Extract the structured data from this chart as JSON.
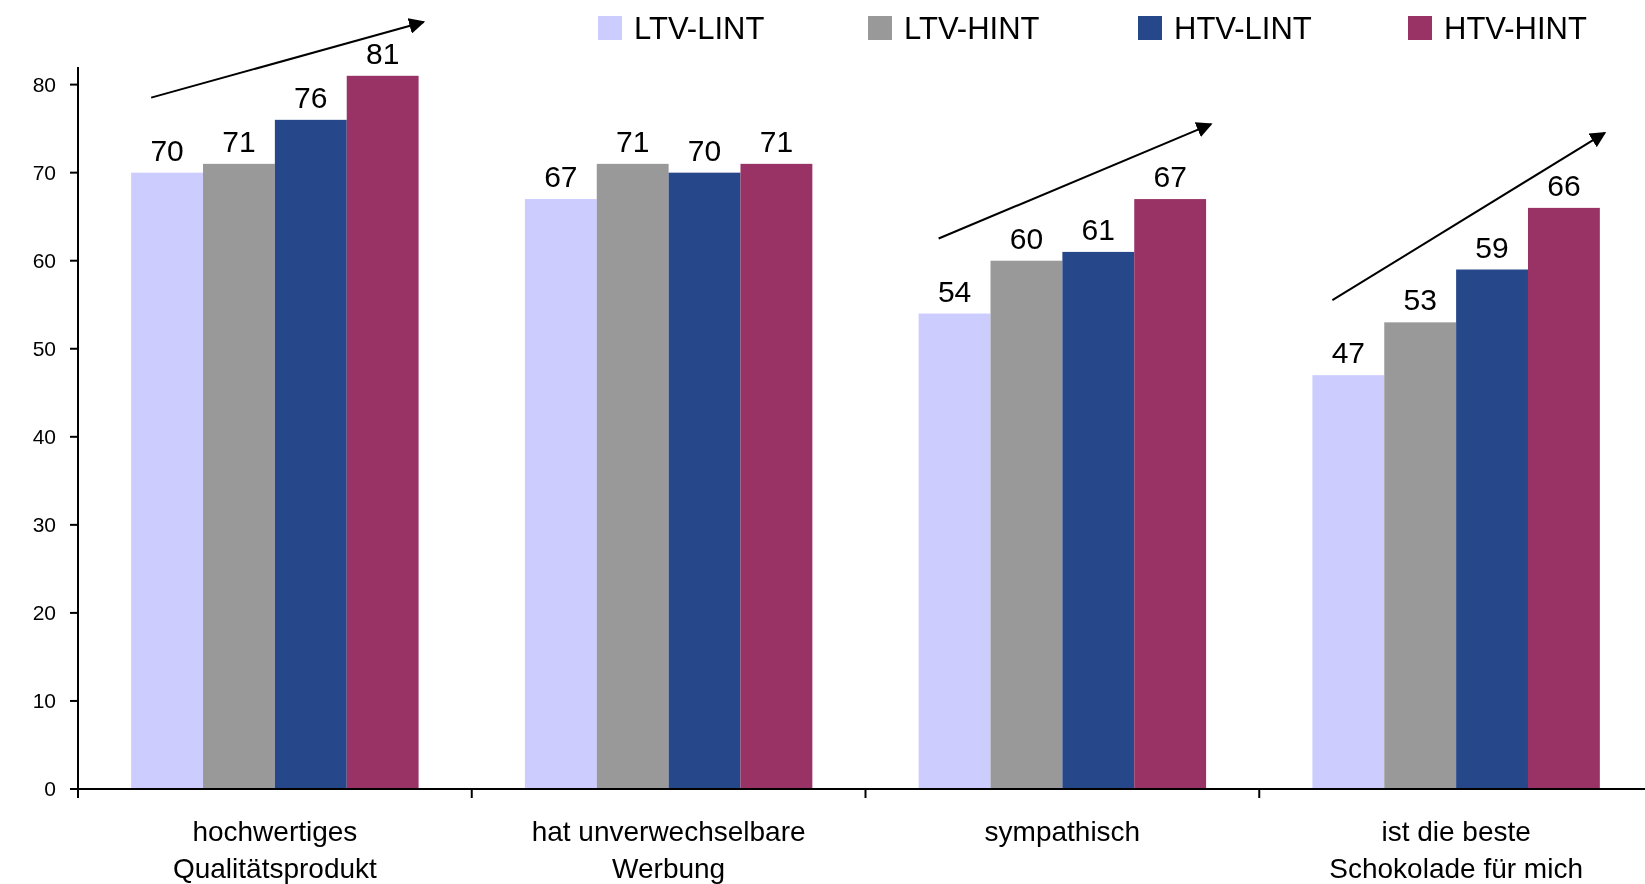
{
  "chart_data": {
    "type": "bar",
    "categories": [
      "hochwertiges Qualitätsprodukt",
      "hat unverwechselbare Werbung",
      "sympathisch",
      "ist die beste Schokolade für mich"
    ],
    "series": [
      {
        "name": "LTV-LINT",
        "color": "#ccccff",
        "values": [
          70,
          67,
          54,
          47
        ]
      },
      {
        "name": "LTV-HINT",
        "color": "#999999",
        "values": [
          71,
          71,
          60,
          53
        ]
      },
      {
        "name": "HTV-LINT",
        "color": "#26478a",
        "values": [
          76,
          70,
          61,
          59
        ]
      },
      {
        "name": "HTV-HINT",
        "color": "#993366",
        "values": [
          81,
          71,
          67,
          66
        ]
      }
    ],
    "ylim": [
      0,
      82
    ],
    "yticks": [
      0,
      10,
      20,
      30,
      40,
      50,
      60,
      70,
      80
    ],
    "data_labels": true,
    "legend": "top right",
    "grid": false
  }
}
